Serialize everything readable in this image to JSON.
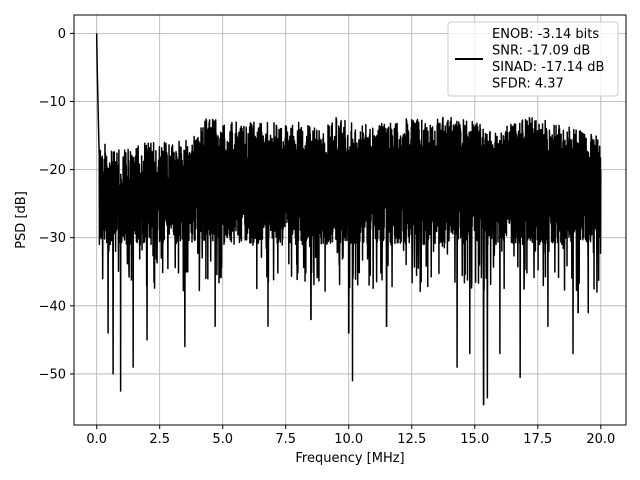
{
  "chart_data": {
    "type": "line",
    "title": "",
    "xlabel": "Frequency [MHz]",
    "ylabel": "PSD [dB]",
    "xlim": [
      -0.9,
      21.0
    ],
    "ylim": [
      -57.5,
      2.7
    ],
    "xticks": [
      0.0,
      2.5,
      5.0,
      7.5,
      10.0,
      12.5,
      15.0,
      17.5,
      20.0
    ],
    "xtick_labels": [
      "0.0",
      "2.5",
      "5.0",
      "7.5",
      "10.0",
      "12.5",
      "15.0",
      "17.5",
      "20.0"
    ],
    "yticks": [
      0,
      -10,
      -20,
      -30,
      -40,
      -50
    ],
    "ytick_labels": [
      "0",
      "−10",
      "−20",
      "−30",
      "−40",
      "−50"
    ],
    "grid": true,
    "legend_position": "top-right",
    "series": [
      {
        "color": "#000000",
        "x_range": [
          0.0,
          20.0
        ],
        "points_visible": "dense noise floor approx -15 to -30 dB with downward spikes to approx -54 dB",
        "peaks": [
          {
            "x": 0.0,
            "y": 0.0
          },
          {
            "x": 0.02,
            "y": -5.0
          },
          {
            "x": 0.05,
            "y": -10.0
          },
          {
            "x": 0.08,
            "y": -15.0
          }
        ],
        "upper_envelope_x": [
          0.1,
          1.0,
          2.0,
          3.0,
          4.0,
          4.3,
          5.0,
          6.0,
          7.0,
          8.0,
          9.0,
          9.5,
          10.0,
          11.0,
          12.0,
          12.6,
          13.0,
          14.0,
          15.0,
          16.0,
          17.0,
          18.0,
          19.0,
          20.0
        ],
        "upper_envelope_y": [
          -15,
          -16,
          -15,
          -15,
          -14,
          -11,
          -12,
          -12,
          -12,
          -12,
          -13,
          -11,
          -12,
          -12,
          -12,
          -11,
          -12,
          -11,
          -12,
          -13,
          -11,
          -12,
          -13,
          -14
        ],
        "dips": [
          {
            "x": 0.45,
            "y": -44
          },
          {
            "x": 0.65,
            "y": -50
          },
          {
            "x": 0.95,
            "y": -52.5
          },
          {
            "x": 1.45,
            "y": -49
          },
          {
            "x": 2.0,
            "y": -45
          },
          {
            "x": 3.5,
            "y": -46
          },
          {
            "x": 4.7,
            "y": -43
          },
          {
            "x": 6.8,
            "y": -43
          },
          {
            "x": 8.5,
            "y": -42
          },
          {
            "x": 10.0,
            "y": -44
          },
          {
            "x": 10.15,
            "y": -51
          },
          {
            "x": 11.5,
            "y": -43
          },
          {
            "x": 14.3,
            "y": -49
          },
          {
            "x": 14.8,
            "y": -47
          },
          {
            "x": 15.35,
            "y": -54.5
          },
          {
            "x": 15.5,
            "y": -53.5
          },
          {
            "x": 16.0,
            "y": -47
          },
          {
            "x": 16.8,
            "y": -50.5
          },
          {
            "x": 17.9,
            "y": -43
          },
          {
            "x": 18.9,
            "y": -47
          },
          {
            "x": 19.1,
            "y": -41
          },
          {
            "x": 19.5,
            "y": -41
          }
        ]
      }
    ],
    "legend_entries": [
      "ENOB: -3.14 bits",
      "SNR: -17.09 dB",
      "SINAD: -17.14 dB",
      "SFDR: 4.37"
    ]
  }
}
